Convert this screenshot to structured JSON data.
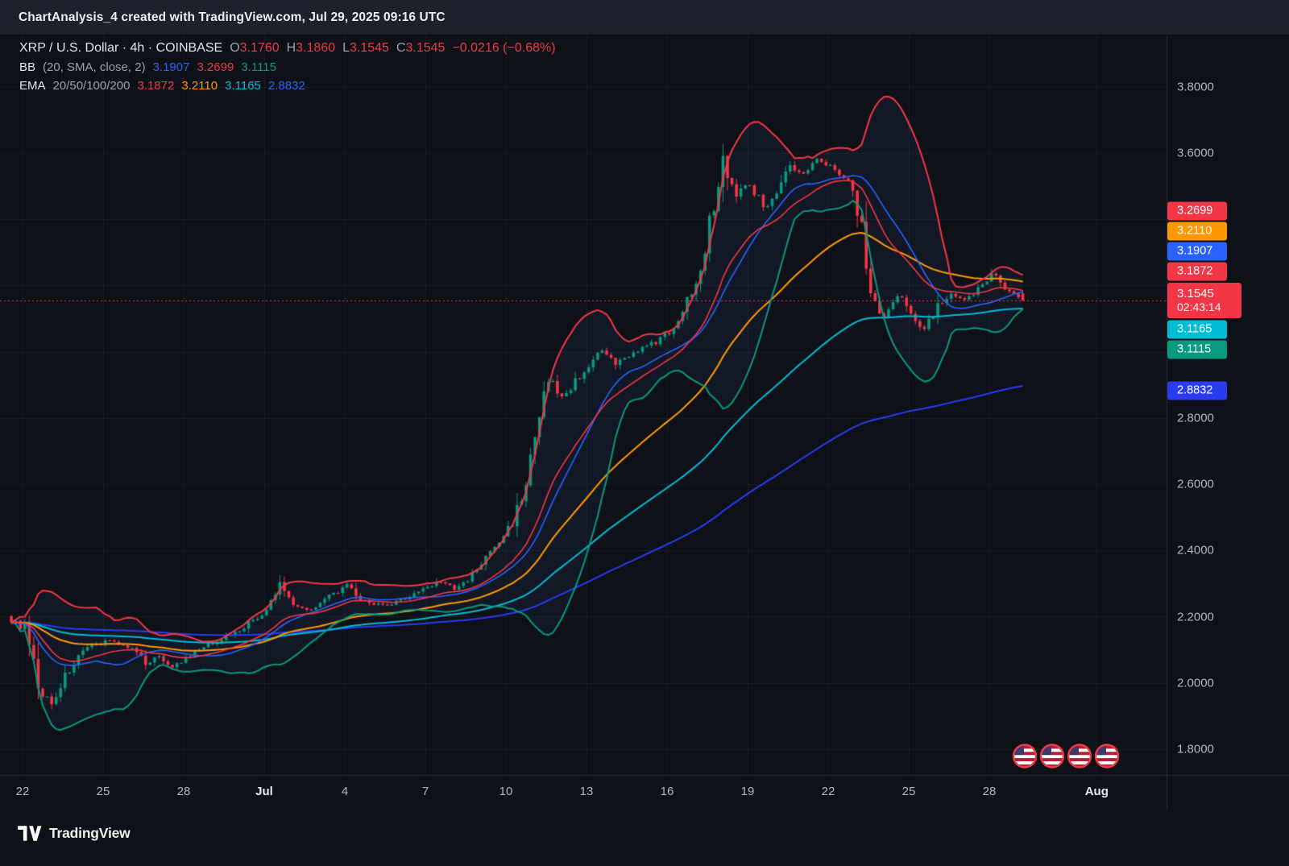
{
  "header": {
    "title": "ChartAnalysis_4 created with TradingView.com, Jul 29, 2025 09:16 UTC"
  },
  "legend": {
    "symbol_row": {
      "title": "XRP / U.S. Dollar · 4h · COINBASE",
      "o_label": "O",
      "o": "3.1760",
      "h_label": "H",
      "h": "3.1860",
      "l_label": "L",
      "l": "3.1545",
      "c_label": "C",
      "c": "3.1545",
      "change": "−0.0216 (−0.68%)"
    },
    "bb_row": {
      "label": "BB",
      "params": "(20, SMA, close, 2)",
      "basis": "3.1907",
      "upper": "3.2699",
      "lower": "3.1115"
    },
    "ema_row": {
      "label": "EMA",
      "params": "20/50/100/200",
      "ema20": "3.1872",
      "ema50": "3.2110",
      "ema100": "3.1165",
      "ema200": "2.8832"
    }
  },
  "price_scale": {
    "ticks": [
      {
        "label": "3.8000",
        "price": 3.8
      },
      {
        "label": "3.6000",
        "price": 3.6
      },
      {
        "label": "2.8000",
        "price": 2.8
      },
      {
        "label": "2.6000",
        "price": 2.6
      },
      {
        "label": "2.4000",
        "price": 2.4
      },
      {
        "label": "2.2000",
        "price": 2.2
      },
      {
        "label": "2.0000",
        "price": 2.0
      },
      {
        "label": "1.8000",
        "price": 1.8
      }
    ],
    "badges": [
      {
        "name": "bb-upper-price-label",
        "text": "3.2699",
        "price": 3.2699,
        "bg": "#f23645"
      },
      {
        "name": "ema50-price-label",
        "text": "3.2110",
        "price": 3.211,
        "bg": "#ff9800"
      },
      {
        "name": "bb-basis-price-label",
        "text": "3.1907",
        "price": 3.1907,
        "bg": "#2962ff"
      },
      {
        "name": "ema20-price-label",
        "text": "3.1872",
        "price": 3.1872,
        "bg": "#f23645"
      },
      {
        "name": "last-price-label",
        "text": "3.1545",
        "countdown": "02:43:14",
        "price": 3.1545,
        "bg": "#f23645",
        "large": true
      },
      {
        "name": "ema100-price-label",
        "text": "3.1165",
        "price": 3.1165,
        "bg": "#00bcd4"
      },
      {
        "name": "bb-lower-price-label",
        "text": "3.1115",
        "price": 3.1115,
        "bg": "#089981"
      },
      {
        "name": "ema200-price-label",
        "text": "2.8832",
        "price": 2.8832,
        "bg": "#2b3bf2"
      }
    ]
  },
  "time_scale": {
    "ticks": [
      {
        "label": "22",
        "day": 0
      },
      {
        "label": "25",
        "day": 3
      },
      {
        "label": "28",
        "day": 6
      },
      {
        "label": "Jul",
        "day": 9,
        "major": true
      },
      {
        "label": "4",
        "day": 12
      },
      {
        "label": "7",
        "day": 15
      },
      {
        "label": "10",
        "day": 18
      },
      {
        "label": "13",
        "day": 21
      },
      {
        "label": "16",
        "day": 24
      },
      {
        "label": "19",
        "day": 27
      },
      {
        "label": "22",
        "day": 30
      },
      {
        "label": "25",
        "day": 33
      },
      {
        "label": "28",
        "day": 36
      },
      {
        "label": "Aug",
        "day": 40,
        "major": true
      }
    ]
  },
  "footer": {
    "brand": "TradingView"
  },
  "events": {
    "count": 4,
    "type": "us-flag-economic-event"
  },
  "colors": {
    "background": "#0e1117",
    "header_bg": "#1c212b",
    "grid": "rgba(255,255,255,0.055)",
    "axis_border": "rgba(255,255,255,0.12)",
    "axis_text": "#b2b5be",
    "text": "#dfe3ec",
    "muted": "#9aa0aa",
    "up": "#089981",
    "down": "#f23645",
    "bb_basis": "#2962ff",
    "bb_upper": "#f23645",
    "bb_lower": "#089981",
    "bb_fill": "rgba(56,92,170,0.10)",
    "ema20": "#f23645",
    "ema50": "#ff9800",
    "ema100": "#00bcd4",
    "ema200": "#2b3bf2",
    "last_price_line": "#f23645"
  },
  "chart_data": {
    "type": "candlestick",
    "title": "XRP / U.S. Dollar",
    "exchange": "COINBASE",
    "interval": "4h",
    "x_range": {
      "start": "Jun 21 12:00",
      "end": "Jul 29 08:00"
    },
    "y_axis": {
      "min": 1.722,
      "max": 3.955,
      "tick_step": 0.2,
      "visible_ticks": [
        3.8,
        3.6,
        2.8,
        2.6,
        2.4,
        2.2,
        2.0,
        1.8
      ]
    },
    "current": {
      "open": 3.176,
      "high": 3.186,
      "low": 3.1545,
      "close": 3.1545,
      "change": -0.0216,
      "change_pct": -0.68,
      "countdown": "02:43:14"
    },
    "indicators": {
      "bollinger": {
        "length": 20,
        "source": "close",
        "mult": 2,
        "basis": 3.1907,
        "upper": 3.2699,
        "lower": 3.1115
      },
      "ema": {
        "20": 3.1872,
        "50": 3.211,
        "100": 3.1165,
        "200": 2.8832
      }
    },
    "last_price_line": 3.1545,
    "sampling": "closes at 12h steps starting Jun 21 12:00; 4h candles interpolated, final candle equals current OHLC",
    "closes_12h": [
      2.19,
      2.16,
      1.98,
      1.94,
      2.02,
      2.08,
      2.11,
      2.13,
      2.12,
      2.1,
      2.06,
      2.08,
      2.05,
      2.07,
      2.1,
      2.12,
      2.14,
      2.16,
      2.19,
      2.21,
      2.3,
      2.24,
      2.22,
      2.24,
      2.27,
      2.29,
      2.25,
      2.24,
      2.23,
      2.25,
      2.27,
      2.29,
      2.31,
      2.28,
      2.31,
      2.36,
      2.41,
      2.46,
      2.56,
      2.72,
      2.92,
      2.86,
      2.91,
      2.96,
      3.0,
      2.96,
      2.99,
      3.01,
      3.03,
      3.06,
      3.12,
      3.22,
      3.38,
      3.58,
      3.47,
      3.52,
      3.43,
      3.49,
      3.56,
      3.53,
      3.59,
      3.56,
      3.53,
      3.46,
      3.18,
      3.1,
      3.17,
      3.12,
      3.07,
      3.14,
      3.17,
      3.15,
      3.19,
      3.24,
      3.19,
      3.17,
      3.1545
    ]
  }
}
